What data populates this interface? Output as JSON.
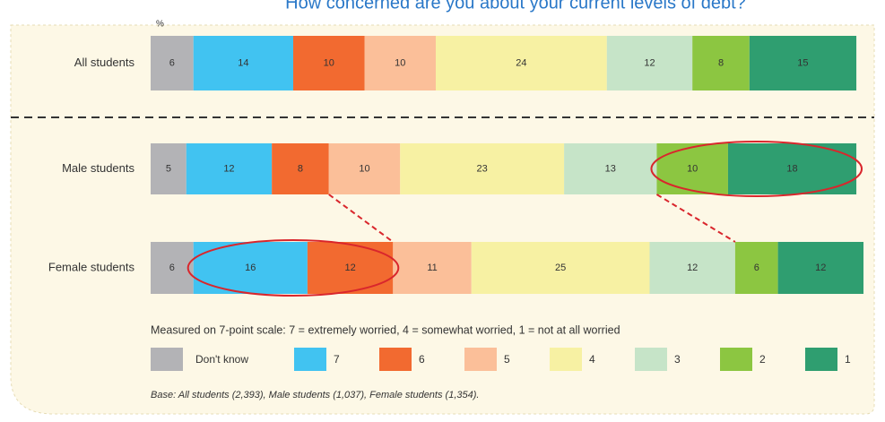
{
  "chart_data": {
    "type": "stacked-bar-horizontal",
    "title": "How concerned are you about your current levels of debt?",
    "unit_label": "%",
    "categories": [
      "All students",
      "Male students",
      "Female students"
    ],
    "series": [
      {
        "name": "Don't know",
        "color": "#b3b3b6",
        "values": [
          6,
          5,
          6
        ]
      },
      {
        "name": "7",
        "color": "#41c3f1",
        "values": [
          14,
          12,
          16
        ]
      },
      {
        "name": "6",
        "color": "#f26a30",
        "values": [
          10,
          8,
          12
        ]
      },
      {
        "name": "5",
        "color": "#fbbf99",
        "values": [
          10,
          10,
          11
        ]
      },
      {
        "name": "4",
        "color": "#f7f1a3",
        "values": [
          24,
          23,
          25
        ]
      },
      {
        "name": "3",
        "color": "#c6e4c8",
        "values": [
          12,
          13,
          12
        ]
      },
      {
        "name": "2",
        "color": "#8cc641",
        "values": [
          8,
          10,
          6
        ]
      },
      {
        "name": "1",
        "color": "#2f9e70",
        "values": [
          15,
          18,
          12
        ]
      }
    ],
    "xlim": [
      0,
      100
    ],
    "note": "Measured on 7-point scale: 7 = extremely worried, 4 = somewhat worried, 1 = not at all worried",
    "base": "Base: All students (2,393), Male students (1,037), Female students (1,354)."
  }
}
